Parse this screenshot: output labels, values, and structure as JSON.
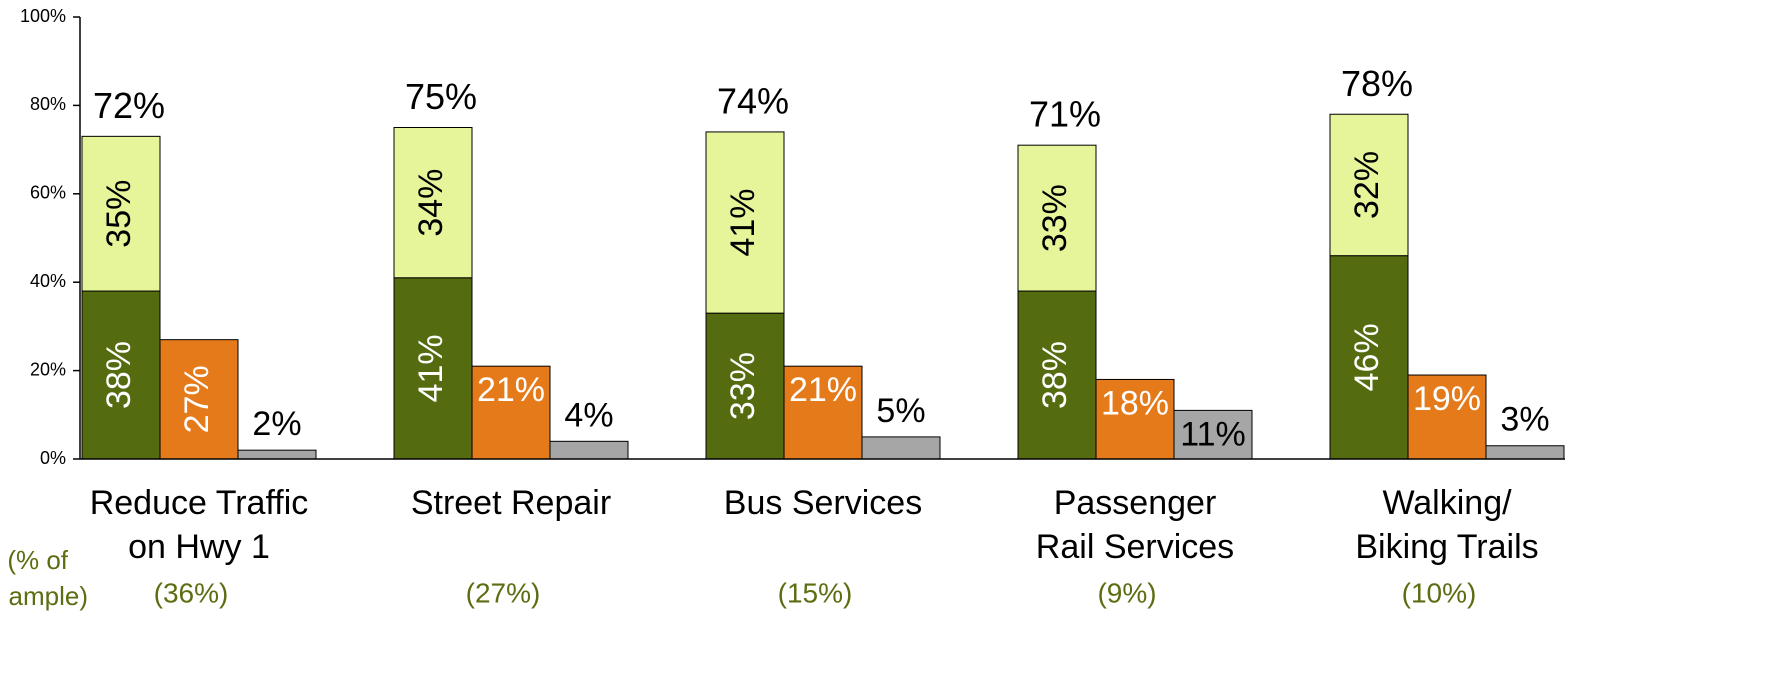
{
  "chart_data": {
    "type": "bar",
    "categories": [
      [
        "Reduce Traffic",
        "on Hwy 1"
      ],
      [
        "Street Repair"
      ],
      [
        "Bus Services"
      ],
      [
        "Passenger",
        "Rail Services"
      ],
      [
        "Walking/",
        "Biking Trails"
      ]
    ],
    "sample_note": [
      "(% of",
      "ample)"
    ],
    "sample_labels": [
      "(36%)",
      "(27%)",
      "(15%)",
      "(9%)",
      "(10%)"
    ],
    "totals": [
      72,
      75,
      74,
      71,
      78
    ],
    "total_labels": [
      "72%",
      "75%",
      "74%",
      "71%",
      "78%"
    ],
    "series": [
      {
        "color": "#546b0f",
        "stack": "a",
        "label_color": "#ffffff",
        "values": [
          38,
          41,
          33,
          38,
          46
        ],
        "value_labels": [
          "38%",
          "41%",
          "33%",
          "38%",
          "46%"
        ]
      },
      {
        "color": "#e6f59a",
        "stack": "a",
        "label_color": "#000000",
        "values": [
          35,
          34,
          41,
          33,
          32
        ],
        "value_labels": [
          "35%",
          "34%",
          "41%",
          "33%",
          "32%"
        ]
      },
      {
        "color": "#e57a1b",
        "stack": "b",
        "label_color": "#ffffff",
        "values": [
          27,
          21,
          21,
          18,
          19
        ],
        "value_labels": [
          "27%",
          "21%",
          "21%",
          "18%",
          "19%"
        ]
      },
      {
        "color": "#a6a6a6",
        "stack": "c",
        "label_color": "#000000",
        "values": [
          2,
          4,
          5,
          11,
          3
        ],
        "value_labels": [
          "2%",
          "4%",
          "5%",
          "11%",
          "3%"
        ]
      }
    ],
    "ylim": [
      0,
      100
    ],
    "yticks": [
      {
        "value": 0,
        "label": "0%"
      },
      {
        "value": 20,
        "label": "20%"
      },
      {
        "value": 40,
        "label": "40%"
      },
      {
        "value": 60,
        "label": "60%"
      },
      {
        "value": 80,
        "label": "80%"
      },
      {
        "value": 100,
        "label": "100%"
      }
    ]
  }
}
